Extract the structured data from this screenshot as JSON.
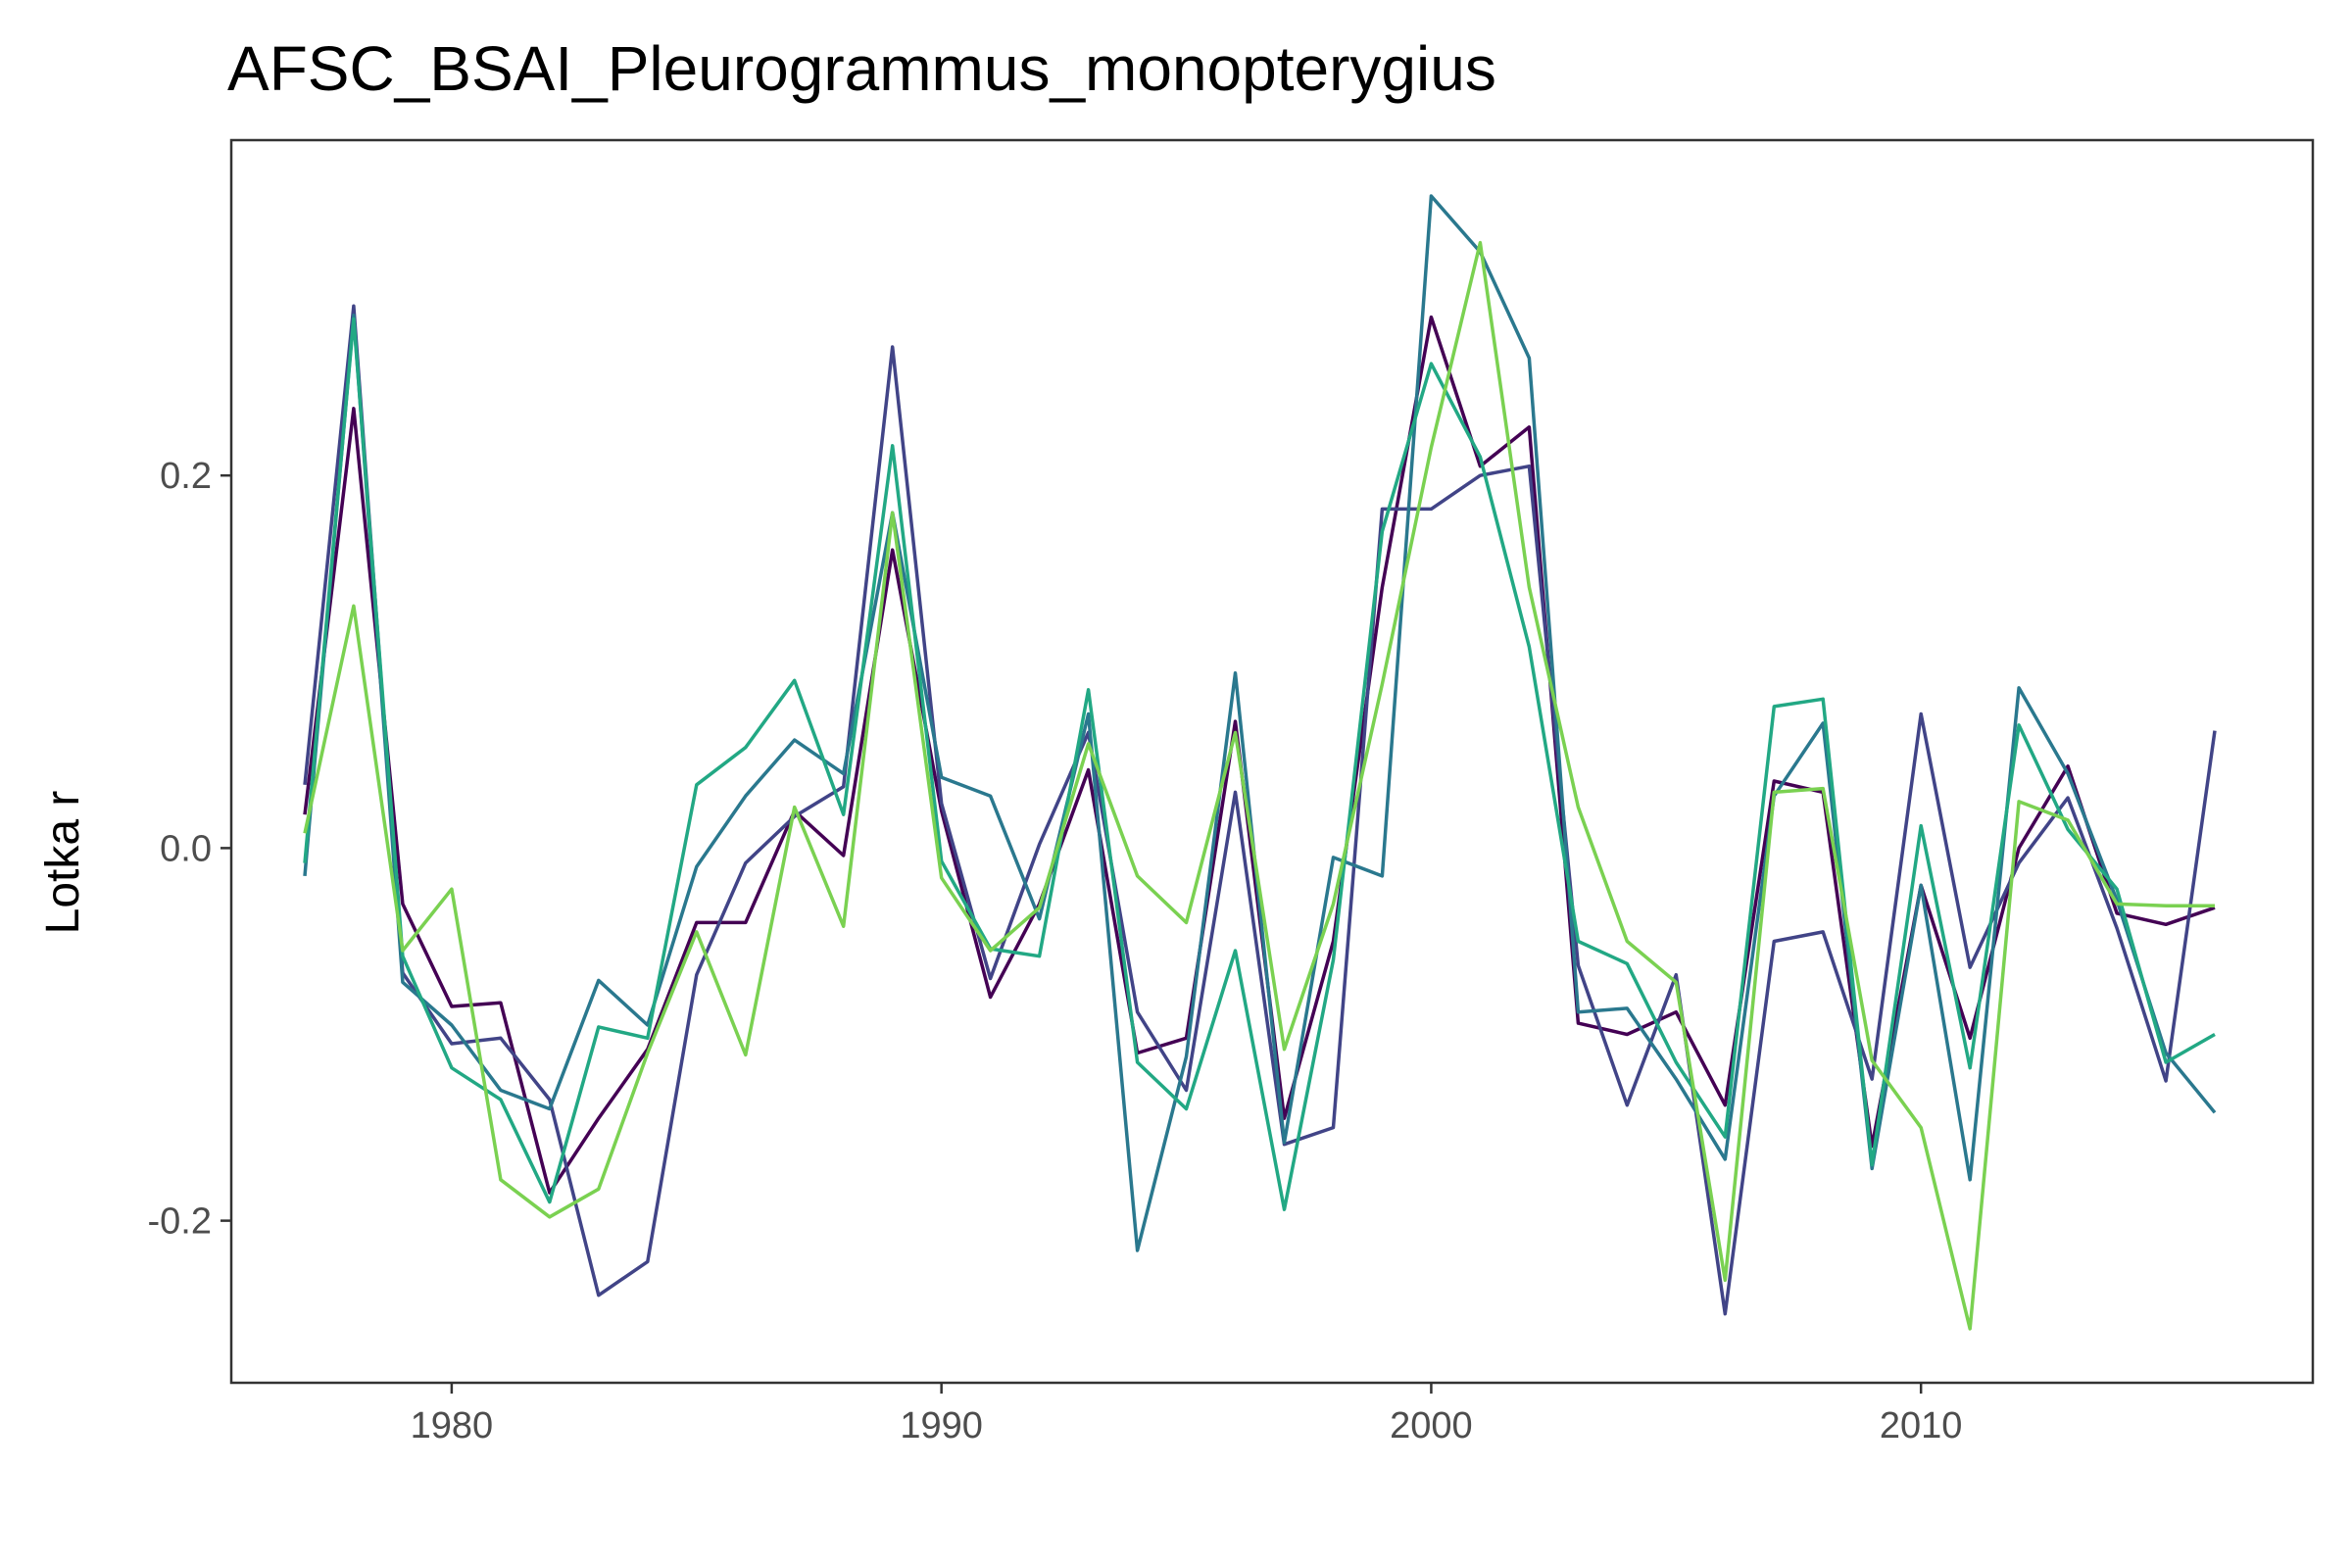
{
  "chart_data": {
    "type": "line",
    "title": "AFSC_BSAI_Pleurogrammus_monopterygius",
    "xlabel": "",
    "ylabel": "Lotka r",
    "xlim": [
      1975.5,
      2018
    ],
    "ylim": [
      -0.287,
      0.38
    ],
    "x_ticks": [
      1980,
      1990,
      2000,
      2010
    ],
    "x_tick_labels": [
      "1980",
      "1990",
      "2000",
      "2010"
    ],
    "y_ticks": [
      -0.2,
      0.0,
      0.2
    ],
    "y_tick_labels": [
      "-0.2",
      "0.0",
      "0.2"
    ],
    "grid": false,
    "legend": "none",
    "x": [
      1977,
      1978,
      1979,
      1980,
      1981,
      1982,
      1983,
      1984,
      1985,
      1986,
      1987,
      1988,
      1989,
      1990,
      1991,
      1992,
      1993,
      1994,
      1995,
      1996,
      1997,
      1998,
      1999,
      2000,
      2001,
      2002,
      2003,
      2004,
      2005,
      2006,
      2007,
      2008,
      2009,
      2010,
      2011,
      2012,
      2013,
      2014,
      2015,
      2016
    ],
    "series": [
      {
        "color": "#440154",
        "values": [
          0.018,
          0.236,
          -0.03,
          -0.085,
          -0.083,
          -0.185,
          -0.145,
          -0.108,
          -0.04,
          -0.04,
          0.02,
          -0.004,
          0.16,
          0.02,
          -0.08,
          -0.03,
          0.042,
          -0.11,
          -0.102,
          0.068,
          -0.145,
          -0.05,
          0.14,
          0.285,
          0.205,
          0.226,
          -0.094,
          -0.1,
          -0.088,
          -0.138,
          0.036,
          0.03,
          -0.16,
          -0.02,
          -0.102,
          0.0,
          0.044,
          -0.035,
          -0.041,
          -0.032
        ]
      },
      {
        "color": "#414487",
        "values": [
          0.034,
          0.291,
          -0.067,
          -0.105,
          -0.102,
          -0.135,
          -0.24,
          -0.222,
          -0.068,
          -0.008,
          0.017,
          0.033,
          0.269,
          0.024,
          -0.07,
          0.002,
          0.062,
          -0.088,
          -0.13,
          0.03,
          -0.159,
          -0.15,
          0.182,
          0.182,
          0.2,
          0.205,
          -0.063,
          -0.138,
          -0.068,
          -0.25,
          -0.05,
          -0.045,
          -0.124,
          0.072,
          -0.064,
          -0.008,
          0.027,
          -0.043,
          -0.125,
          0.063
        ]
      },
      {
        "color": "#2a788e",
        "values": [
          -0.015,
          0.286,
          -0.072,
          -0.095,
          -0.13,
          -0.14,
          -0.071,
          -0.095,
          -0.01,
          0.028,
          0.058,
          0.04,
          0.18,
          0.038,
          0.028,
          -0.038,
          0.072,
          -0.216,
          -0.112,
          0.094,
          -0.158,
          -0.005,
          -0.015,
          0.35,
          0.32,
          0.263,
          -0.088,
          -0.086,
          -0.124,
          -0.167,
          0.028,
          0.067,
          -0.172,
          -0.02,
          -0.178,
          0.086,
          0.04,
          -0.028,
          -0.11,
          -0.142
        ]
      },
      {
        "color": "#22a884",
        "values": [
          -0.008,
          0.284,
          -0.058,
          -0.118,
          -0.135,
          -0.19,
          -0.096,
          -0.102,
          0.034,
          0.054,
          0.09,
          0.018,
          0.216,
          -0.007,
          -0.054,
          -0.058,
          0.085,
          -0.115,
          -0.14,
          -0.055,
          -0.194,
          -0.06,
          0.17,
          0.26,
          0.21,
          0.108,
          -0.05,
          -0.062,
          -0.115,
          -0.155,
          0.076,
          0.08,
          -0.17,
          0.012,
          -0.118,
          0.066,
          0.01,
          -0.022,
          -0.115,
          -0.1
        ]
      },
      {
        "color": "#7ad151",
        "values": [
          0.008,
          0.13,
          -0.055,
          -0.022,
          -0.178,
          -0.198,
          -0.183,
          -0.11,
          -0.045,
          -0.111,
          0.022,
          -0.042,
          0.18,
          -0.016,
          -0.055,
          -0.032,
          0.056,
          -0.015,
          -0.04,
          0.062,
          -0.108,
          -0.03,
          0.088,
          0.215,
          0.325,
          0.14,
          0.022,
          -0.05,
          -0.072,
          -0.232,
          0.03,
          0.032,
          -0.114,
          -0.15,
          -0.258,
          0.025,
          0.015,
          -0.03,
          -0.031,
          -0.031
        ]
      }
    ]
  }
}
